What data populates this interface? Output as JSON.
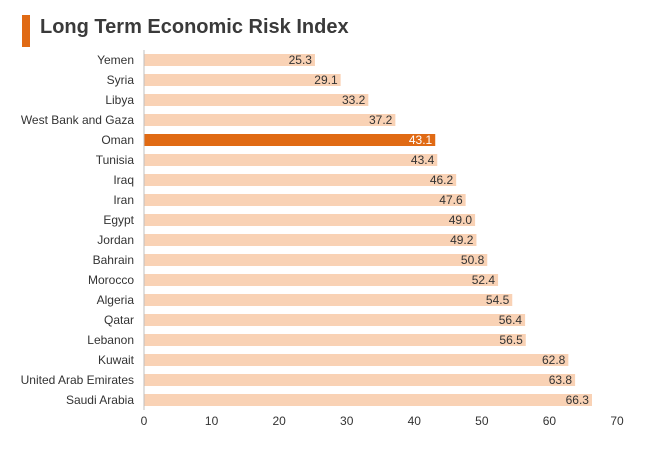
{
  "title": "Long Term Economic Risk Index",
  "colors": {
    "accent": "#e06a14",
    "bar": "#f9d2b5",
    "highlight": "#e06a14",
    "text": "#333333",
    "axis": "#bfbfbf"
  },
  "chart_data": {
    "type": "bar",
    "orientation": "horizontal",
    "title": "Long Term Economic Risk Index",
    "xlabel": "",
    "ylabel": "",
    "xlim": [
      0,
      70
    ],
    "ticks": [
      0,
      10,
      20,
      30,
      40,
      50,
      60,
      70
    ],
    "grid": false,
    "highlighted_category": "Oman",
    "categories": [
      "Yemen",
      "Syria",
      "Libya",
      "West Bank and Gaza",
      "Oman",
      "Tunisia",
      "Iraq",
      "Iran",
      "Egypt",
      "Jordan",
      "Bahrain",
      "Morocco",
      "Algeria",
      "Qatar",
      "Lebanon",
      "Kuwait",
      "United Arab Emirates",
      "Saudi Arabia"
    ],
    "values": [
      25.3,
      29.1,
      33.2,
      37.2,
      43.1,
      43.4,
      46.2,
      47.6,
      49.0,
      49.2,
      50.8,
      52.4,
      54.5,
      56.4,
      56.5,
      62.8,
      63.8,
      66.3
    ],
    "value_labels": [
      "25.3",
      "29.1",
      "33.2",
      "37.2",
      "43.1",
      "43.4",
      "46.2",
      "47.6",
      "49.0",
      "49.2",
      "50.8",
      "52.4",
      "54.5",
      "56.4",
      "56.5",
      "62.8",
      "63.8",
      "66.3"
    ]
  }
}
